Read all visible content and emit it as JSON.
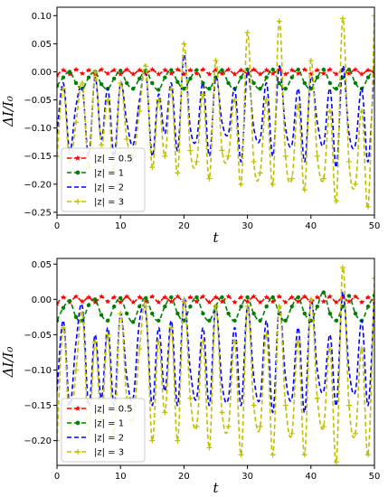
{
  "chart_data": [
    {
      "type": "line",
      "panel": "top",
      "xlabel": "t",
      "ylabel": "ΔI/I₀",
      "xlim": [
        0,
        50
      ],
      "ylim": [
        -0.255,
        0.115
      ],
      "xticks": [
        "0",
        "10",
        "20",
        "30",
        "40",
        "50"
      ],
      "yticks": [
        "0.10",
        "0.05",
        "0.00",
        "−0.05",
        "−0.10",
        "−0.15",
        "−0.20",
        "−0.25"
      ],
      "grid": false,
      "legend": "lower-left",
      "series": [
        {
          "name": "|z| = 0.5",
          "color": "#ff0000",
          "marker": "star",
          "style": "dashed",
          "x": [
            0,
            1,
            2,
            3,
            4,
            5,
            6,
            7,
            8,
            9,
            10,
            11,
            12,
            13,
            14,
            15,
            16,
            17,
            18,
            19,
            20,
            21,
            22,
            23,
            24,
            25,
            26,
            27,
            28,
            29,
            30,
            31,
            32,
            33,
            34,
            35,
            36,
            37,
            38,
            39,
            40,
            41,
            42,
            43,
            44,
            45,
            46,
            47,
            48,
            49,
            50
          ],
          "y": [
            -0.006,
            0.003,
            -0.004,
            0.004,
            -0.003,
            0.003,
            -0.004,
            0.004,
            -0.003,
            0.003,
            -0.004,
            0.004,
            -0.004,
            0.003,
            -0.003,
            0.004,
            -0.004,
            0.003,
            -0.003,
            0.004,
            -0.004,
            0.003,
            -0.003,
            0.004,
            -0.004,
            0.003,
            -0.003,
            0.004,
            -0.004,
            0.003,
            -0.003,
            0.004,
            -0.004,
            0.003,
            -0.003,
            0.004,
            -0.004,
            0.003,
            -0.003,
            0.004,
            -0.004,
            0.003,
            -0.003,
            0.004,
            -0.004,
            0.003,
            -0.003,
            0.004,
            -0.004,
            0.003,
            -0.002
          ]
        },
        {
          "name": "|z| = 1",
          "color": "#007f00",
          "marker": "circle",
          "style": "dashed",
          "x": [
            0,
            1,
            2,
            3,
            4,
            5,
            6,
            7,
            8,
            9,
            10,
            11,
            12,
            13,
            14,
            15,
            16,
            17,
            18,
            19,
            20,
            21,
            22,
            23,
            24,
            25,
            26,
            27,
            28,
            29,
            30,
            31,
            32,
            33,
            34,
            35,
            36,
            37,
            38,
            39,
            40,
            41,
            42,
            43,
            44,
            45,
            46,
            47,
            48,
            49,
            50
          ],
          "y": [
            -0.025,
            -0.01,
            0.0,
            -0.02,
            -0.03,
            -0.01,
            0.0,
            -0.022,
            -0.03,
            -0.012,
            0.002,
            -0.02,
            -0.03,
            -0.012,
            0.002,
            -0.02,
            -0.032,
            -0.01,
            0.003,
            -0.018,
            -0.03,
            -0.012,
            0.003,
            -0.02,
            -0.03,
            -0.01,
            0.003,
            -0.02,
            -0.03,
            -0.01,
            0.004,
            -0.02,
            -0.03,
            -0.01,
            0.004,
            -0.02,
            -0.03,
            -0.01,
            0.004,
            -0.02,
            -0.03,
            -0.01,
            0.004,
            -0.02,
            -0.03,
            -0.01,
            0.004,
            -0.02,
            -0.03,
            -0.01,
            0.005
          ]
        },
        {
          "name": "|z| = 2",
          "color": "#0000ff",
          "marker": "none",
          "style": "dashed",
          "x": [
            0,
            1,
            2,
            3,
            4,
            5,
            6,
            7,
            8,
            9,
            10,
            11,
            12,
            13,
            14,
            15,
            16,
            17,
            18,
            19,
            20,
            21,
            22,
            23,
            24,
            25,
            26,
            27,
            28,
            29,
            30,
            31,
            32,
            33,
            34,
            35,
            36,
            37,
            38,
            39,
            40,
            41,
            42,
            43,
            44,
            45,
            46,
            47,
            48,
            49,
            50
          ],
          "y": [
            -0.11,
            -0.02,
            -0.14,
            -0.06,
            -0.03,
            -0.15,
            -0.01,
            -0.12,
            -0.03,
            -0.15,
            -0.02,
            -0.09,
            -0.13,
            -0.05,
            0.0,
            -0.15,
            -0.04,
            -0.11,
            -0.02,
            -0.14,
            0.03,
            -0.1,
            -0.12,
            -0.02,
            -0.15,
            -0.01,
            -0.09,
            -0.11,
            -0.03,
            -0.16,
            0.0,
            -0.1,
            -0.12,
            -0.02,
            -0.15,
            0.01,
            -0.1,
            -0.13,
            -0.03,
            -0.16,
            -0.01,
            -0.09,
            -0.13,
            -0.03,
            -0.17,
            0.01,
            -0.11,
            -0.13,
            -0.03,
            -0.16,
            0.02
          ]
        },
        {
          "name": "|z| = 3",
          "color": "#bfbf00",
          "marker": "plus",
          "style": "dashed",
          "x": [
            0,
            1,
            2,
            3,
            4,
            5,
            6,
            7,
            8,
            9,
            10,
            11,
            12,
            13,
            14,
            15,
            16,
            17,
            18,
            19,
            20,
            21,
            22,
            23,
            24,
            25,
            26,
            27,
            28,
            29,
            30,
            31,
            32,
            33,
            34,
            35,
            36,
            37,
            38,
            39,
            40,
            41,
            42,
            43,
            44,
            45,
            46,
            47,
            48,
            49,
            50
          ],
          "y": [
            -0.15,
            -0.03,
            -0.16,
            -0.09,
            -0.02,
            -0.17,
            0.0,
            -0.13,
            -0.05,
            -0.18,
            -0.02,
            -0.12,
            -0.15,
            -0.07,
            0.01,
            -0.17,
            -0.05,
            -0.15,
            -0.03,
            -0.18,
            0.05,
            -0.14,
            -0.16,
            -0.04,
            -0.19,
            0.02,
            -0.14,
            -0.15,
            -0.05,
            -0.2,
            0.07,
            -0.16,
            -0.18,
            -0.05,
            -0.2,
            0.09,
            -0.15,
            -0.19,
            -0.06,
            -0.21,
            0.02,
            -0.15,
            -0.19,
            -0.07,
            -0.23,
            0.095,
            -0.16,
            -0.2,
            -0.07,
            -0.24,
            0.1
          ]
        }
      ]
    },
    {
      "type": "line",
      "panel": "bottom",
      "xlabel": "t",
      "ylabel": "ΔI/I₀",
      "xlim": [
        0,
        50
      ],
      "ylim": [
        -0.235,
        0.058
      ],
      "xticks": [
        "0",
        "10",
        "20",
        "30",
        "40",
        "50"
      ],
      "yticks": [
        "0.05",
        "0.00",
        "−0.05",
        "−0.10",
        "−0.15",
        "−0.20"
      ],
      "grid": false,
      "legend": "lower-left",
      "series": [
        {
          "name": "|z| = 0.5",
          "color": "#ff0000",
          "marker": "star",
          "style": "dashed",
          "x": [
            0,
            1,
            2,
            3,
            4,
            5,
            6,
            7,
            8,
            9,
            10,
            11,
            12,
            13,
            14,
            15,
            16,
            17,
            18,
            19,
            20,
            21,
            22,
            23,
            24,
            25,
            26,
            27,
            28,
            29,
            30,
            31,
            32,
            33,
            34,
            35,
            36,
            37,
            38,
            39,
            40,
            41,
            42,
            43,
            44,
            45,
            46,
            47,
            48,
            49,
            50
          ],
          "y": [
            -0.006,
            0.003,
            -0.004,
            0.004,
            -0.003,
            0.003,
            -0.004,
            0.004,
            -0.003,
            0.003,
            -0.004,
            0.004,
            -0.004,
            0.003,
            -0.003,
            0.004,
            -0.004,
            0.003,
            -0.003,
            0.004,
            -0.004,
            0.003,
            -0.003,
            0.004,
            -0.004,
            0.003,
            -0.003,
            0.004,
            -0.004,
            0.003,
            -0.003,
            0.004,
            -0.004,
            0.003,
            -0.003,
            0.004,
            -0.004,
            0.003,
            -0.003,
            0.004,
            -0.004,
            0.003,
            -0.003,
            0.004,
            -0.004,
            0.003,
            -0.003,
            0.004,
            -0.004,
            0.003,
            -0.002
          ]
        },
        {
          "name": "|z| = 1",
          "color": "#007f00",
          "marker": "circle",
          "style": "dashed",
          "x": [
            0,
            1,
            2,
            3,
            4,
            5,
            6,
            7,
            8,
            9,
            10,
            11,
            12,
            13,
            14,
            15,
            16,
            17,
            18,
            19,
            20,
            21,
            22,
            23,
            24,
            25,
            26,
            27,
            28,
            29,
            30,
            31,
            32,
            33,
            34,
            35,
            36,
            37,
            38,
            39,
            40,
            41,
            42,
            43,
            44,
            45,
            46,
            47,
            48,
            49,
            50
          ],
          "y": [
            -0.03,
            -0.012,
            -0.002,
            -0.025,
            -0.03,
            -0.008,
            0.0,
            -0.022,
            -0.03,
            -0.01,
            0.002,
            -0.02,
            -0.032,
            -0.01,
            0.002,
            -0.02,
            -0.03,
            -0.01,
            0.003,
            -0.02,
            -0.03,
            -0.01,
            0.003,
            -0.02,
            -0.03,
            -0.01,
            0.003,
            -0.02,
            -0.03,
            -0.01,
            0.003,
            -0.02,
            -0.03,
            -0.01,
            0.003,
            -0.02,
            -0.03,
            -0.01,
            0.003,
            -0.02,
            -0.03,
            -0.01,
            0.01,
            -0.02,
            -0.03,
            -0.01,
            0.005,
            -0.02,
            -0.03,
            -0.01,
            0.006
          ]
        },
        {
          "name": "|z| = 2",
          "color": "#0000ff",
          "marker": "none",
          "style": "dashed",
          "x": [
            0,
            1,
            2,
            3,
            4,
            5,
            6,
            7,
            8,
            9,
            10,
            11,
            12,
            13,
            14,
            15,
            16,
            17,
            18,
            19,
            20,
            21,
            22,
            23,
            24,
            25,
            26,
            27,
            28,
            29,
            30,
            31,
            32,
            33,
            34,
            35,
            36,
            37,
            38,
            39,
            40,
            41,
            42,
            43,
            44,
            45,
            46,
            47,
            48,
            49,
            50
          ],
          "y": [
            -0.13,
            -0.03,
            -0.15,
            -0.06,
            -0.01,
            -0.15,
            -0.05,
            -0.14,
            -0.04,
            -0.15,
            -0.02,
            -0.11,
            -0.14,
            -0.03,
            -0.02,
            -0.15,
            -0.04,
            -0.13,
            -0.03,
            -0.15,
            0.0,
            -0.1,
            -0.14,
            -0.04,
            -0.15,
            -0.01,
            -0.12,
            -0.14,
            -0.04,
            -0.15,
            -0.01,
            -0.11,
            -0.14,
            -0.03,
            -0.16,
            -0.01,
            -0.11,
            -0.14,
            -0.04,
            -0.16,
            0.0,
            -0.1,
            -0.13,
            -0.05,
            -0.15,
            0.01,
            -0.1,
            -0.13,
            -0.03,
            -0.15,
            0.01
          ]
        },
        {
          "name": "|z| = 3",
          "color": "#bfbf00",
          "marker": "plus",
          "style": "dashed",
          "x": [
            0,
            1,
            2,
            3,
            4,
            5,
            6,
            7,
            8,
            9,
            10,
            11,
            12,
            13,
            14,
            15,
            16,
            17,
            18,
            19,
            20,
            21,
            22,
            23,
            24,
            25,
            26,
            27,
            28,
            29,
            30,
            31,
            32,
            33,
            34,
            35,
            36,
            37,
            38,
            39,
            40,
            41,
            42,
            43,
            44,
            45,
            46,
            47,
            48,
            49,
            50
          ],
          "y": [
            -0.2,
            -0.04,
            -0.18,
            -0.1,
            -0.02,
            -0.19,
            -0.06,
            -0.17,
            -0.05,
            -0.19,
            -0.02,
            -0.14,
            -0.17,
            -0.07,
            -0.01,
            -0.2,
            -0.06,
            -0.16,
            -0.04,
            -0.2,
            0.0,
            -0.14,
            -0.18,
            -0.06,
            -0.21,
            -0.01,
            -0.16,
            -0.18,
            -0.06,
            -0.22,
            -0.01,
            -0.15,
            -0.18,
            -0.05,
            -0.22,
            -0.01,
            -0.15,
            -0.19,
            -0.06,
            -0.22,
            0.0,
            -0.14,
            -0.18,
            -0.07,
            -0.23,
            0.045,
            -0.15,
            -0.19,
            -0.07,
            -0.22,
            0.03
          ]
        }
      ]
    }
  ]
}
